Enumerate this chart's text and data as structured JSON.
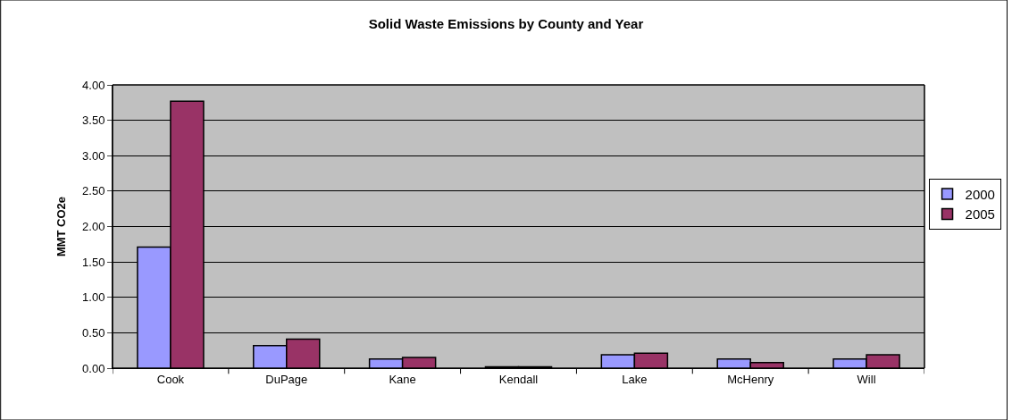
{
  "chart_data": {
    "type": "bar",
    "title": "Solid Waste Emissions by County and Year",
    "ylabel": "MMT CO2e",
    "categories": [
      "Cook",
      "DuPage",
      "Kane",
      "Kendall",
      "Lake",
      "McHenry",
      "Will"
    ],
    "series": [
      {
        "name": "2000",
        "color": "#9999ff",
        "values": [
          1.71,
          0.32,
          0.13,
          0.02,
          0.19,
          0.13,
          0.13
        ]
      },
      {
        "name": "2005",
        "color": "#993366",
        "values": [
          3.77,
          0.41,
          0.15,
          0.02,
          0.21,
          0.08,
          0.19
        ]
      }
    ],
    "ylim": [
      0,
      4
    ],
    "yticks": [
      {
        "value": 0,
        "label": "0.00"
      },
      {
        "value": 0.5,
        "label": "0.50"
      },
      {
        "value": 1,
        "label": "1.00"
      },
      {
        "value": 1.5,
        "label": "1.50"
      },
      {
        "value": 2,
        "label": "2.00"
      },
      {
        "value": 2.5,
        "label": "2.50"
      },
      {
        "value": 3,
        "label": "3.00"
      },
      {
        "value": 3.5,
        "label": "3.50"
      },
      {
        "value": 4,
        "label": "4.00"
      }
    ],
    "grid": "y",
    "legend": "right"
  }
}
